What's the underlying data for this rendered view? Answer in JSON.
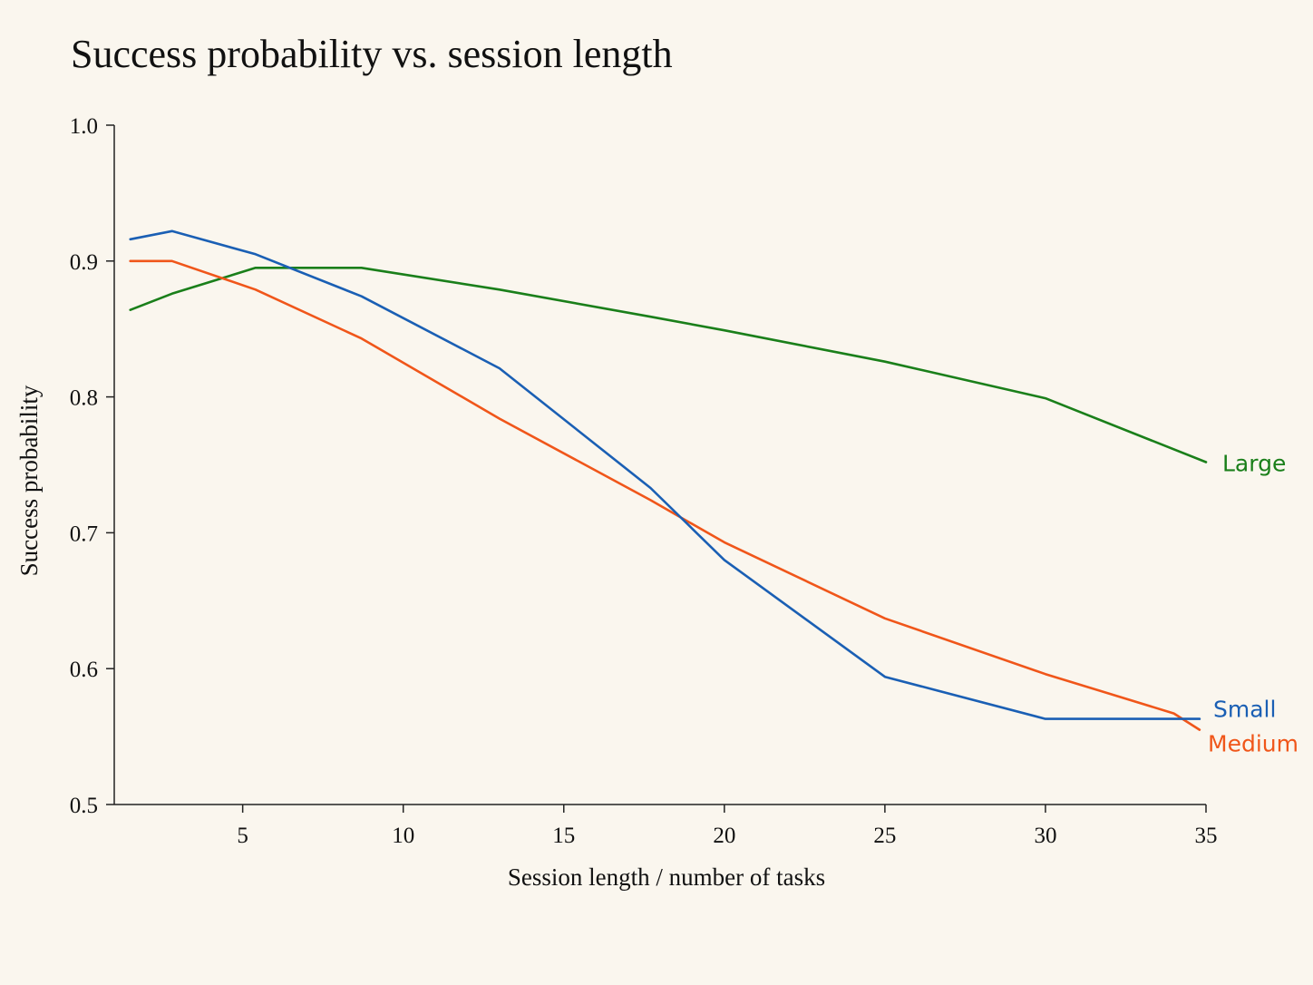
{
  "chart_data": {
    "type": "line",
    "title": "Success probability vs. session length",
    "xlabel": "Session length / number of tasks",
    "ylabel": "Success probability",
    "xlim": [
      1,
      35
    ],
    "ylim": [
      0.5,
      1.0
    ],
    "xticks": [
      5,
      10,
      15,
      20,
      25,
      30,
      35
    ],
    "yticks": [
      0.5,
      0.6,
      0.7,
      0.8,
      0.9,
      1.0
    ],
    "ytick_labels": [
      "0.5",
      "0.6",
      "0.7",
      "0.8",
      "0.9",
      "1.0"
    ],
    "grid": false,
    "legend": "direct labels at line ends",
    "series": [
      {
        "name": "Large",
        "color": "#1a7f1a",
        "x": [
          1.5,
          2.8,
          5.4,
          8.7,
          13,
          17.7,
          20,
          25,
          30,
          35
        ],
        "y": [
          0.864,
          0.876,
          0.895,
          0.895,
          0.879,
          0.859,
          0.849,
          0.826,
          0.799,
          0.752
        ]
      },
      {
        "name": "Medium",
        "color": "#f0561a",
        "x": [
          1.5,
          2.8,
          5.4,
          8.7,
          13,
          17.7,
          20,
          25,
          30,
          34,
          34.8
        ],
        "y": [
          0.9,
          0.9,
          0.879,
          0.843,
          0.784,
          0.724,
          0.693,
          0.637,
          0.596,
          0.567,
          0.555
        ]
      },
      {
        "name": "Small",
        "color": "#1a5fb4",
        "x": [
          1.5,
          2.8,
          5.4,
          8.7,
          13,
          17.7,
          20,
          25,
          30,
          34.8
        ],
        "y": [
          0.916,
          0.922,
          0.905,
          0.874,
          0.821,
          0.733,
          0.68,
          0.594,
          0.563,
          0.563
        ]
      }
    ]
  }
}
